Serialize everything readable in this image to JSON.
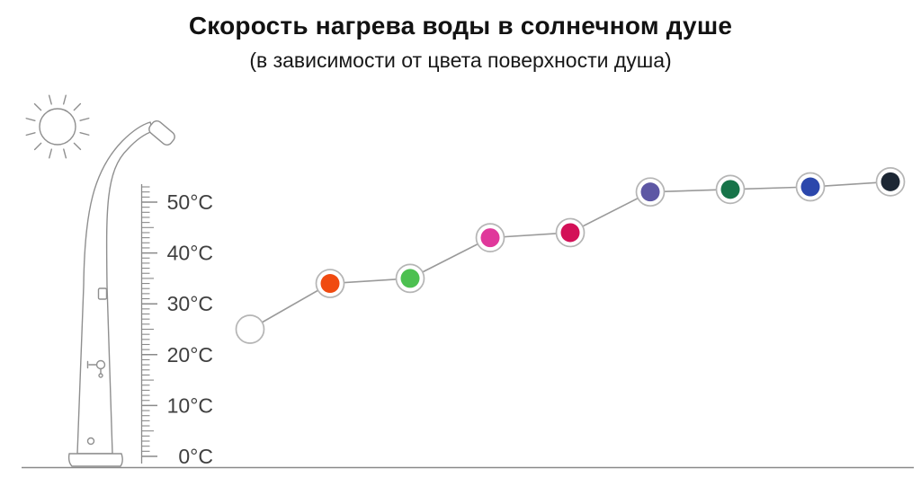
{
  "title": "Скорость нагрева воды в солнечном душе",
  "subtitle": "(в зависимости от цвета поверхности душа)",
  "chart_data": {
    "type": "line",
    "title": "Скорость нагрева воды в солнечном душе",
    "subtitle": "(в зависимости от цвета поверхности душа)",
    "ylim": [
      0,
      55
    ],
    "ytick_step": 10,
    "ytick_labels": [
      "0°C",
      "10°C",
      "20°C",
      "30°C",
      "40°C",
      "50°C"
    ],
    "grid": false,
    "legend": false,
    "line_color": "#9a9a9a",
    "marker_ring_color": "#b5b5b5",
    "baseline_color": "#8a8a8a",
    "series": [
      {
        "name": "water-temperature-by-shower-surface-color",
        "points": [
          {
            "surface_color": "white",
            "hex": "#ffffff",
            "temp_c": 25
          },
          {
            "surface_color": "orange",
            "hex": "#f04a10",
            "temp_c": 34
          },
          {
            "surface_color": "green",
            "hex": "#4cc050",
            "temp_c": 35
          },
          {
            "surface_color": "magenta",
            "hex": "#e0389b",
            "temp_c": 43
          },
          {
            "surface_color": "crimson",
            "hex": "#d31057",
            "temp_c": 44
          },
          {
            "surface_color": "violet",
            "hex": "#5d57a4",
            "temp_c": 52
          },
          {
            "surface_color": "dark-green",
            "hex": "#177449",
            "temp_c": 52.5
          },
          {
            "surface_color": "blue",
            "hex": "#2b47ac",
            "temp_c": 53
          },
          {
            "surface_color": "dark-navy",
            "hex": "#1c2734",
            "temp_c": 54
          }
        ]
      }
    ]
  },
  "illustration": {
    "sun_icon": "sun-with-rays",
    "shower_icon": "solar-shower-column-with-thermometer-scale"
  }
}
